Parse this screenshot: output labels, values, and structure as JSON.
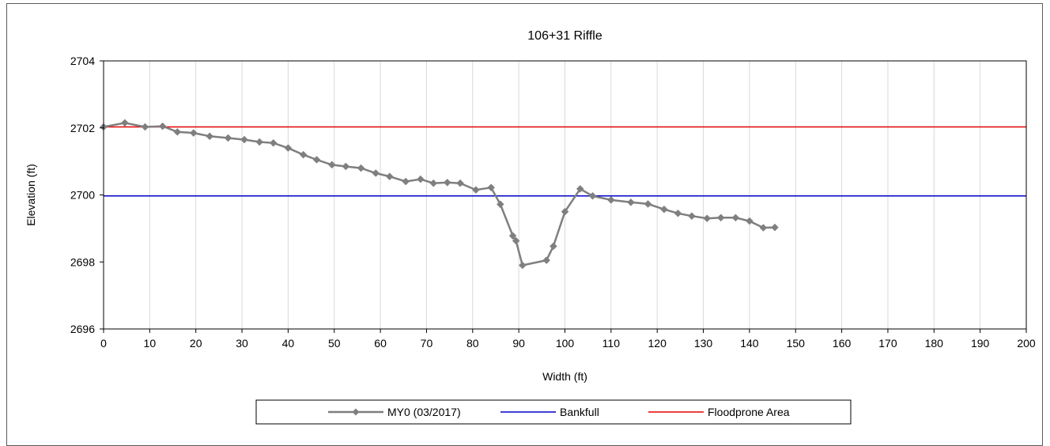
{
  "chart_data": {
    "type": "line",
    "title": "106+31 Riffle",
    "xlabel": "Width (ft)",
    "ylabel": "Elevation (ft)",
    "xlim": [
      0,
      200
    ],
    "ylim": [
      2696,
      2704
    ],
    "xticks": [
      0,
      10,
      20,
      30,
      40,
      50,
      60,
      70,
      80,
      90,
      100,
      110,
      120,
      130,
      140,
      150,
      160,
      170,
      180,
      190,
      200
    ],
    "yticks": [
      2696,
      2698,
      2700,
      2702,
      2704
    ],
    "grid": "vertical",
    "legend_position": "bottom",
    "series": [
      {
        "name": "MY0 (03/2017)",
        "color": "#7f7f7f",
        "marker": "diamond",
        "points": [
          [
            0,
            2702.03
          ],
          [
            4.6,
            2702.15
          ],
          [
            9.0,
            2702.03
          ],
          [
            12.8,
            2702.05
          ],
          [
            16.0,
            2701.88
          ],
          [
            19.5,
            2701.85
          ],
          [
            23.0,
            2701.75
          ],
          [
            27.0,
            2701.7
          ],
          [
            30.5,
            2701.65
          ],
          [
            33.8,
            2701.58
          ],
          [
            36.8,
            2701.55
          ],
          [
            40.0,
            2701.4
          ],
          [
            43.3,
            2701.2
          ],
          [
            46.2,
            2701.05
          ],
          [
            49.5,
            2700.9
          ],
          [
            52.5,
            2700.85
          ],
          [
            55.8,
            2700.8
          ],
          [
            59.0,
            2700.65
          ],
          [
            62.0,
            2700.55
          ],
          [
            65.5,
            2700.4
          ],
          [
            68.7,
            2700.47
          ],
          [
            71.5,
            2700.35
          ],
          [
            74.5,
            2700.37
          ],
          [
            77.3,
            2700.35
          ],
          [
            80.7,
            2700.15
          ],
          [
            84.0,
            2700.22
          ],
          [
            86.0,
            2699.72
          ],
          [
            88.7,
            2698.78
          ],
          [
            89.4,
            2698.63
          ],
          [
            90.8,
            2697.9
          ],
          [
            96.0,
            2698.05
          ],
          [
            97.5,
            2698.47
          ],
          [
            100.0,
            2699.5
          ],
          [
            103.3,
            2700.18
          ],
          [
            106.0,
            2699.97
          ],
          [
            110.0,
            2699.85
          ],
          [
            114.3,
            2699.78
          ],
          [
            118.0,
            2699.73
          ],
          [
            121.5,
            2699.57
          ],
          [
            124.5,
            2699.45
          ],
          [
            127.5,
            2699.37
          ],
          [
            130.8,
            2699.3
          ],
          [
            133.8,
            2699.32
          ],
          [
            137.0,
            2699.32
          ],
          [
            140.0,
            2699.22
          ],
          [
            143.0,
            2699.02
          ],
          [
            145.5,
            2699.03
          ]
        ]
      },
      {
        "name": "Bankfull",
        "color": "#0000c8",
        "y": 2699.97
      },
      {
        "name": "Floodprone Area",
        "color": "#e60000",
        "y": 2702.03
      }
    ]
  }
}
